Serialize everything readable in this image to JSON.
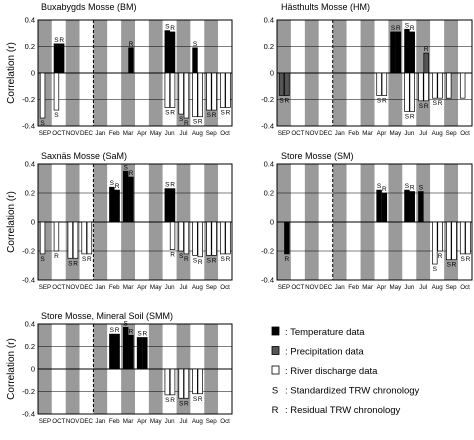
{
  "ylabel": "Correlation (r)",
  "months": [
    "SEP",
    "OCT",
    "NOV",
    "DEC",
    "Jan",
    "Feb",
    "Mar",
    "Apr",
    "May",
    "Jun",
    "Jul",
    "Aug",
    "Sep",
    "Oct"
  ],
  "colors": {
    "temperature": "#000000",
    "precipitation": "#555555",
    "river": "#ffffff",
    "shade": "#9a9a9a",
    "white_col": "#ffffff"
  },
  "legend": [
    {
      "key": "temperature",
      "label": ": Temperature data"
    },
    {
      "key": "precipitation",
      "label": ": Precipitation data"
    },
    {
      "key": "river",
      "label": ": River discharge data"
    },
    {
      "key": "S",
      "label": ": Standardized TRW chronology"
    },
    {
      "key": "R",
      "label": ": Residual TRW chronology"
    }
  ],
  "chart_data": [
    {
      "type": "bar",
      "title": "Buxabygds Mosse (BM)",
      "ylim": [
        -0.4,
        0.4
      ],
      "yticks": [
        "0.4",
        "0.2",
        "0",
        "-0.2",
        "-0.4"
      ],
      "xlabel": "",
      "ylabel": "Correlation (r)",
      "bars": [
        {
          "month": 0,
          "pos": 0,
          "value": -0.34,
          "kind": "river",
          "marker": "S"
        },
        {
          "month": 1,
          "pos": 0,
          "value": 0.22,
          "kind": "temperature",
          "marker": "S"
        },
        {
          "month": 1,
          "pos": 1,
          "value": 0.22,
          "kind": "temperature",
          "marker": "R"
        },
        {
          "month": 1,
          "pos": 0,
          "value": -0.28,
          "kind": "river",
          "marker": "S"
        },
        {
          "month": 6,
          "pos": 1,
          "value": 0.19,
          "kind": "temperature",
          "marker": "R"
        },
        {
          "month": 9,
          "pos": 0,
          "value": 0.32,
          "kind": "temperature",
          "marker": "S"
        },
        {
          "month": 9,
          "pos": 1,
          "value": 0.31,
          "kind": "temperature",
          "marker": "R"
        },
        {
          "month": 9,
          "pos": 0,
          "value": -0.26,
          "kind": "river",
          "marker": "S"
        },
        {
          "month": 9,
          "pos": 1,
          "value": -0.26,
          "kind": "river",
          "marker": "R"
        },
        {
          "month": 10,
          "pos": 0,
          "value": -0.31,
          "kind": "river",
          "marker": "S"
        },
        {
          "month": 10,
          "pos": 1,
          "value": -0.34,
          "kind": "river",
          "marker": "R"
        },
        {
          "month": 11,
          "pos": 0,
          "value": 0.19,
          "kind": "temperature",
          "marker": "S"
        },
        {
          "month": 11,
          "pos": 0,
          "value": -0.33,
          "kind": "river",
          "marker": "S"
        },
        {
          "month": 11,
          "pos": 1,
          "value": -0.33,
          "kind": "river",
          "marker": "R"
        },
        {
          "month": 12,
          "pos": 0,
          "value": -0.28,
          "kind": "river",
          "marker": "S"
        },
        {
          "month": 12,
          "pos": 1,
          "value": -0.28,
          "kind": "river",
          "marker": "R"
        },
        {
          "month": 13,
          "pos": 0,
          "value": -0.26,
          "kind": "river",
          "marker": "S"
        },
        {
          "month": 13,
          "pos": 1,
          "value": -0.26,
          "kind": "river",
          "marker": "R"
        }
      ]
    },
    {
      "type": "bar",
      "title": "Hästhults Mosse (HM)",
      "ylim": [
        -0.4,
        0.4
      ],
      "yticks": [
        "0.4",
        "0.2",
        "0",
        "-0.2",
        "-0.4"
      ],
      "xlabel": "",
      "ylabel": "",
      "bars": [
        {
          "month": 0,
          "pos": 0,
          "value": -0.17,
          "kind": "precipitation",
          "marker": "S"
        },
        {
          "month": 0,
          "pos": 1,
          "value": -0.17,
          "kind": "precipitation",
          "marker": "R"
        },
        {
          "month": 7,
          "pos": 0,
          "value": -0.17,
          "kind": "river",
          "marker": "S"
        },
        {
          "month": 7,
          "pos": 1,
          "value": -0.17,
          "kind": "river",
          "marker": "R"
        },
        {
          "month": 8,
          "pos": 0,
          "value": 0.31,
          "kind": "temperature",
          "marker": "S"
        },
        {
          "month": 8,
          "pos": 1,
          "value": 0.31,
          "kind": "temperature",
          "marker": "R"
        },
        {
          "month": 9,
          "pos": 0,
          "value": 0.33,
          "kind": "temperature",
          "marker": "S"
        },
        {
          "month": 9,
          "pos": 1,
          "value": 0.31,
          "kind": "temperature",
          "marker": "R"
        },
        {
          "month": 9,
          "pos": 0,
          "value": -0.29,
          "kind": "river",
          "marker": "S"
        },
        {
          "month": 9,
          "pos": 1,
          "value": -0.29,
          "kind": "river",
          "marker": "R"
        },
        {
          "month": 10,
          "pos": 0,
          "value": -0.21,
          "kind": "river",
          "marker": "S"
        },
        {
          "month": 10,
          "pos": 1,
          "value": 0.15,
          "kind": "precipitation",
          "marker": "R"
        },
        {
          "month": 10,
          "pos": 1,
          "value": -0.21,
          "kind": "river",
          "marker": "R"
        },
        {
          "month": 11,
          "pos": 0,
          "value": -0.19,
          "kind": "river",
          "marker": "S"
        },
        {
          "month": 11,
          "pos": 1,
          "value": -0.19,
          "kind": "river",
          "marker": "R"
        },
        {
          "month": 12,
          "pos": 0,
          "value": -0.19,
          "kind": "river",
          "marker": ""
        },
        {
          "month": 13,
          "pos": 0,
          "value": -0.19,
          "kind": "river",
          "marker": ""
        }
      ]
    },
    {
      "type": "bar",
      "title": "Saxnäs Mosse (SaM)",
      "ylim": [
        -0.4,
        0.4
      ],
      "yticks": [
        "0.4",
        "0.2",
        "0",
        "-0.2",
        "-0.4"
      ],
      "xlabel": "",
      "ylabel": "Correlation (r)",
      "bars": [
        {
          "month": 0,
          "pos": 0,
          "value": -0.22,
          "kind": "river",
          "marker": "S"
        },
        {
          "month": 1,
          "pos": 0,
          "value": -0.2,
          "kind": "river",
          "marker": "R"
        },
        {
          "month": 2,
          "pos": 0,
          "value": -0.25,
          "kind": "river",
          "marker": "S"
        },
        {
          "month": 2,
          "pos": 1,
          "value": -0.25,
          "kind": "river",
          "marker": "R"
        },
        {
          "month": 3,
          "pos": 0,
          "value": -0.22,
          "kind": "river",
          "marker": "S"
        },
        {
          "month": 3,
          "pos": 1,
          "value": -0.22,
          "kind": "river",
          "marker": "R"
        },
        {
          "month": 5,
          "pos": 0,
          "value": 0.24,
          "kind": "temperature",
          "marker": "S"
        },
        {
          "month": 5,
          "pos": 1,
          "value": 0.22,
          "kind": "temperature",
          "marker": "R"
        },
        {
          "month": 6,
          "pos": 0,
          "value": 0.35,
          "kind": "temperature",
          "marker": "S"
        },
        {
          "month": 6,
          "pos": 1,
          "value": 0.31,
          "kind": "temperature",
          "marker": "R"
        },
        {
          "month": 9,
          "pos": 0,
          "value": 0.23,
          "kind": "temperature",
          "marker": "S"
        },
        {
          "month": 9,
          "pos": 1,
          "value": 0.23,
          "kind": "temperature",
          "marker": "R"
        },
        {
          "month": 9,
          "pos": 1,
          "value": -0.19,
          "kind": "river",
          "marker": "R"
        },
        {
          "month": 10,
          "pos": 0,
          "value": -0.2,
          "kind": "river",
          "marker": "S"
        },
        {
          "month": 10,
          "pos": 1,
          "value": -0.22,
          "kind": "river",
          "marker": "R"
        },
        {
          "month": 11,
          "pos": 0,
          "value": -0.23,
          "kind": "river",
          "marker": "S"
        },
        {
          "month": 11,
          "pos": 1,
          "value": -0.24,
          "kind": "river",
          "marker": "R"
        },
        {
          "month": 12,
          "pos": 0,
          "value": -0.23,
          "kind": "river",
          "marker": "S"
        },
        {
          "month": 12,
          "pos": 1,
          "value": -0.23,
          "kind": "river",
          "marker": "R"
        },
        {
          "month": 13,
          "pos": 0,
          "value": -0.22,
          "kind": "river",
          "marker": "S"
        },
        {
          "month": 13,
          "pos": 1,
          "value": -0.22,
          "kind": "river",
          "marker": "R"
        }
      ]
    },
    {
      "type": "bar",
      "title": "Store Mosse (SM)",
      "ylim": [
        -0.4,
        0.4
      ],
      "yticks": [
        "0.4",
        "0.2",
        "0",
        "-0.2",
        "-0.4"
      ],
      "xlabel": "",
      "ylabel": "",
      "bars": [
        {
          "month": 0,
          "pos": 1,
          "value": -0.22,
          "kind": "temperature",
          "marker": "R"
        },
        {
          "month": 7,
          "pos": 0,
          "value": 0.22,
          "kind": "temperature",
          "marker": "S"
        },
        {
          "month": 7,
          "pos": 1,
          "value": 0.2,
          "kind": "temperature",
          "marker": "R"
        },
        {
          "month": 9,
          "pos": 0,
          "value": 0.22,
          "kind": "temperature",
          "marker": "S"
        },
        {
          "month": 9,
          "pos": 1,
          "value": 0.21,
          "kind": "temperature",
          "marker": "R"
        },
        {
          "month": 10,
          "pos": 0,
          "value": 0.21,
          "kind": "temperature",
          "marker": "S"
        },
        {
          "month": 11,
          "pos": 0,
          "value": -0.29,
          "kind": "river",
          "marker": "S"
        },
        {
          "month": 11,
          "pos": 1,
          "value": -0.2,
          "kind": "river",
          "marker": "R"
        },
        {
          "month": 12,
          "pos": 0,
          "value": -0.26,
          "kind": "river",
          "marker": "S"
        },
        {
          "month": 12,
          "pos": 1,
          "value": -0.26,
          "kind": "river",
          "marker": "R"
        },
        {
          "month": 13,
          "pos": 0,
          "value": -0.22,
          "kind": "river",
          "marker": "S"
        },
        {
          "month": 13,
          "pos": 1,
          "value": -0.22,
          "kind": "river",
          "marker": "R"
        }
      ]
    },
    {
      "type": "bar",
      "title": "Store Mosse, Mineral Soil (SMM)",
      "ylim": [
        -0.4,
        0.4
      ],
      "yticks": [
        "0.4",
        "0.2",
        "0",
        "-0.2",
        "-0.4"
      ],
      "xlabel": "",
      "ylabel": "Correlation (r)",
      "bars": [
        {
          "month": 5,
          "pos": 0,
          "value": 0.31,
          "kind": "temperature",
          "marker": "S"
        },
        {
          "month": 5,
          "pos": 1,
          "value": 0.31,
          "kind": "temperature",
          "marker": "R"
        },
        {
          "month": 6,
          "pos": 0,
          "value": 0.37,
          "kind": "temperature",
          "marker": "S"
        },
        {
          "month": 6,
          "pos": 1,
          "value": 0.3,
          "kind": "temperature",
          "marker": "R"
        },
        {
          "month": 7,
          "pos": 0,
          "value": 0.28,
          "kind": "temperature",
          "marker": "S"
        },
        {
          "month": 7,
          "pos": 1,
          "value": 0.28,
          "kind": "temperature",
          "marker": "R"
        },
        {
          "month": 9,
          "pos": 0,
          "value": -0.23,
          "kind": "river",
          "marker": "S"
        },
        {
          "month": 9,
          "pos": 1,
          "value": -0.23,
          "kind": "river",
          "marker": "R"
        },
        {
          "month": 10,
          "pos": 0,
          "value": -0.26,
          "kind": "river",
          "marker": "S"
        },
        {
          "month": 10,
          "pos": 1,
          "value": -0.26,
          "kind": "river",
          "marker": "R"
        },
        {
          "month": 11,
          "pos": 0,
          "value": -0.22,
          "kind": "river",
          "marker": "S"
        },
        {
          "month": 11,
          "pos": 1,
          "value": -0.22,
          "kind": "river",
          "marker": "R"
        }
      ]
    }
  ]
}
